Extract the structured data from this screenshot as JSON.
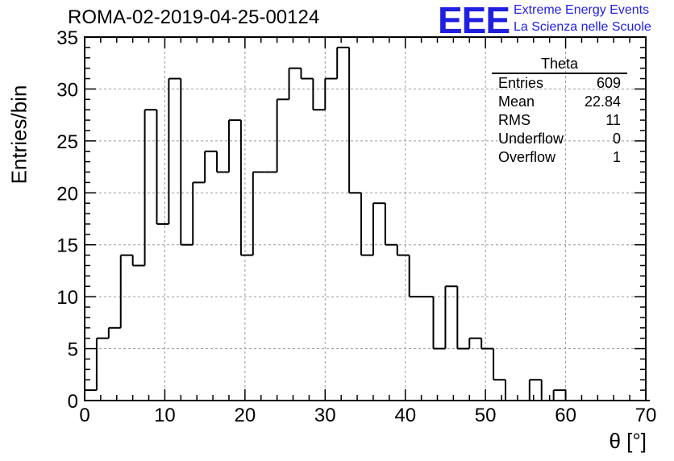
{
  "title": "ROMA-02-2019-04-25-00124",
  "logo": {
    "mark": "EEE",
    "line1": "Extreme Energy Events",
    "line2": "La Scienza nelle Scuole",
    "color": "#1f1fe0"
  },
  "stats": {
    "name": "Theta",
    "rows": [
      {
        "label": "Entries",
        "value": "609"
      },
      {
        "label": "Mean",
        "value": "22.84"
      },
      {
        "label": "RMS",
        "value": "11"
      },
      {
        "label": "Underflow",
        "value": "0"
      },
      {
        "label": "Overflow",
        "value": "1"
      }
    ]
  },
  "chart_data": {
    "type": "bar",
    "style": "step-histogram",
    "title": "ROMA-02-2019-04-25-00124",
    "xlabel": "θ [°]",
    "ylabel": "Entries/bin",
    "xlim": [
      0,
      70
    ],
    "ylim": [
      0,
      35
    ],
    "xticks": [
      0,
      10,
      20,
      30,
      40,
      50,
      60,
      70
    ],
    "yticks": [
      0,
      5,
      10,
      15,
      20,
      25,
      30,
      35
    ],
    "grid": true,
    "line_color": "#000000",
    "bin_width": 1.5,
    "x_start": 0,
    "values": [
      1,
      6,
      7,
      14,
      13,
      28,
      17,
      31,
      15,
      21,
      24,
      22,
      27,
      14,
      22,
      22,
      29,
      32,
      31,
      28,
      31,
      34,
      20,
      14,
      19,
      15,
      14,
      10,
      10,
      5,
      11,
      5,
      6,
      5,
      2,
      0,
      0,
      2,
      0,
      1,
      0,
      0,
      0,
      0,
      0,
      0,
      0
    ]
  }
}
